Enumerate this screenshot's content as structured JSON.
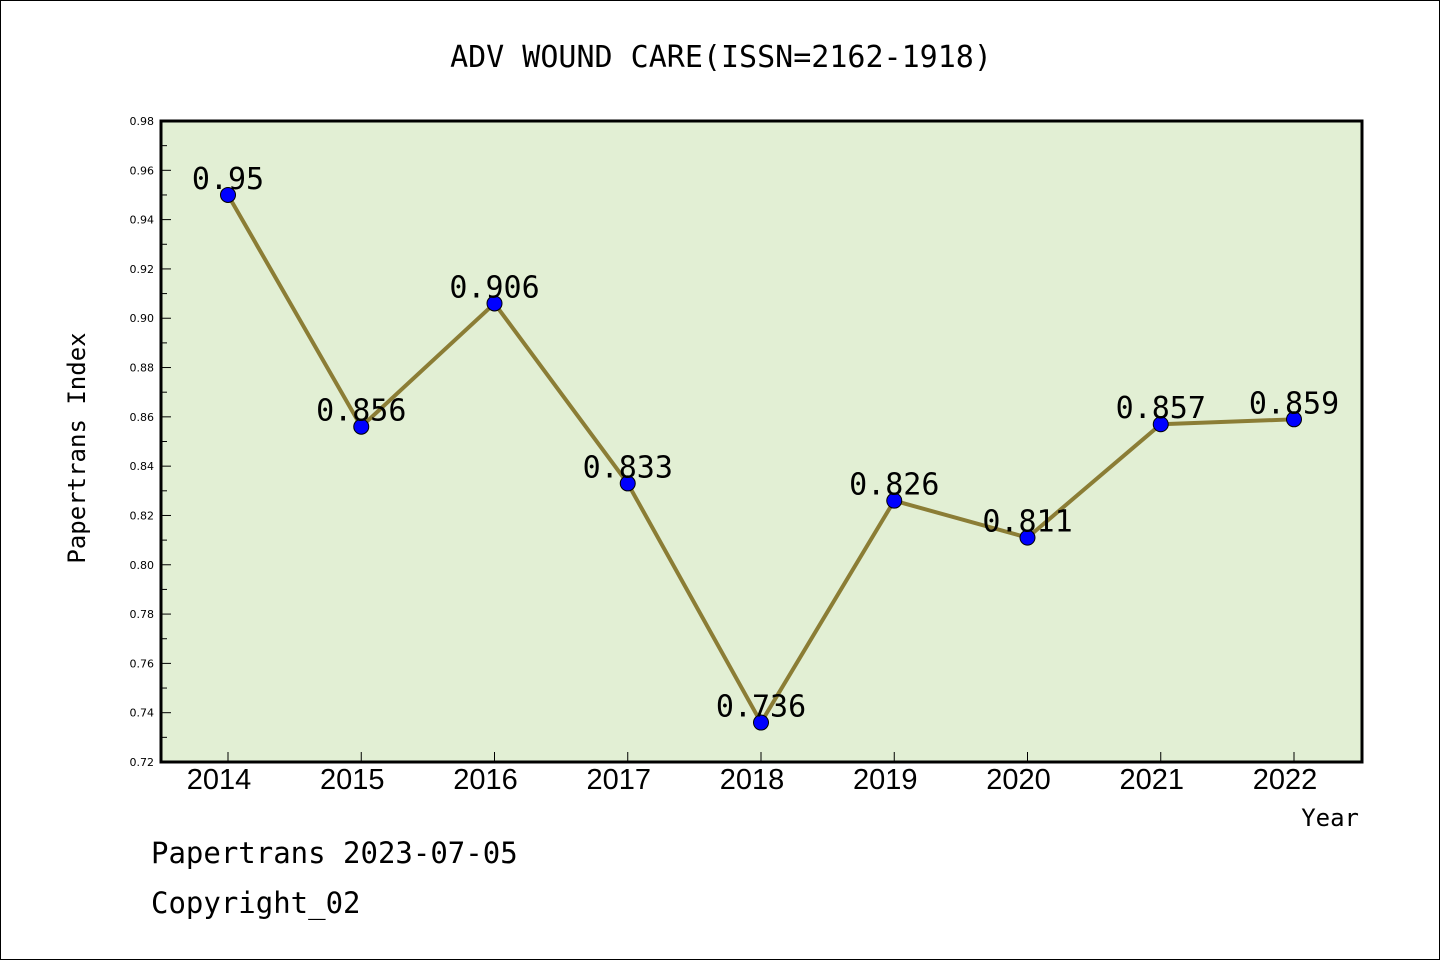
{
  "chart_data": {
    "type": "line",
    "title": "ADV WOUND CARE(ISSN=2162-1918)",
    "xlabel": "Year",
    "ylabel": "Papertrans Index",
    "categories": [
      "2014",
      "2015",
      "2016",
      "2017",
      "2018",
      "2019",
      "2020",
      "2021",
      "2022"
    ],
    "values": [
      0.95,
      0.856,
      0.906,
      0.833,
      0.736,
      0.826,
      0.811,
      0.857,
      0.859
    ],
    "data_labels": [
      "0.95",
      "0.856",
      "0.906",
      "0.833",
      "0.736",
      "0.826",
      "0.811",
      "0.857",
      "0.859"
    ],
    "ylim": [
      0.72,
      0.98
    ],
    "yticks": [
      "0.72",
      "0.74",
      "0.76",
      "0.78",
      "0.80",
      "0.82",
      "0.84",
      "0.86",
      "0.88",
      "0.90",
      "0.92",
      "0.94",
      "0.96",
      "0.98"
    ],
    "grid": false,
    "legend": "none",
    "colors": {
      "plot_background": "#e2efd4",
      "line": "#8b7d35",
      "marker": "#0000ff"
    }
  },
  "footer": {
    "source": "Papertrans 2023-07-05",
    "copyright": "Copyright_02"
  }
}
